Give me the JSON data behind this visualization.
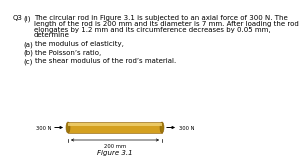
{
  "title_q": "Q3",
  "title_part": "(i)",
  "body_lines": [
    "The circular rod in Figure 3.1 is subjected to an axial force of 300 N. The",
    "length of the rod is 200 mm and its diameter is 7 mm. After loading the rod",
    "elongates by 1.2 mm and its circumference decreases by 0.05 mm,",
    "determine"
  ],
  "parts": [
    {
      "label": "(a)",
      "text": "the modulus of elasticity,"
    },
    {
      "label": "(b)",
      "text": "the Poisson’s ratio,"
    },
    {
      "label": "(c)",
      "text": "the shear modulus of the rod’s material."
    }
  ],
  "rod_color_main": "#D4A020",
  "rod_color_edge": "#8B6010",
  "rod_color_highlight": "#F0D070",
  "rod_color_shadow": "#A07808",
  "arrow_force": "300 N",
  "dim_label": "200 mm",
  "fig_label": "Figure 3.1",
  "font_size": 5.0,
  "bg_color": "#ffffff"
}
